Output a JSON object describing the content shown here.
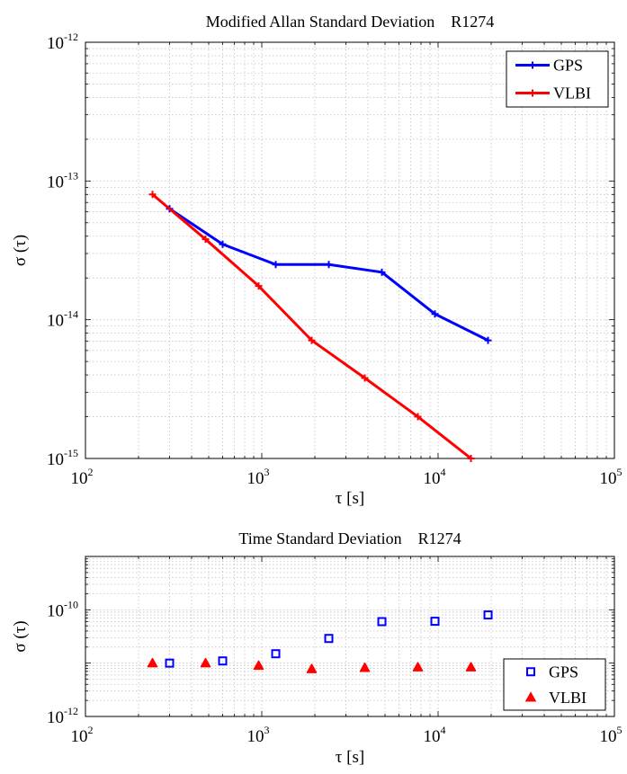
{
  "chart_data": [
    {
      "type": "line",
      "title": "Modified Allan Standard Deviation    R1274",
      "xlabel": "τ [s]",
      "ylabel": "σ (τ)",
      "xscale": "log",
      "yscale": "log",
      "xlim": [
        100,
        100000
      ],
      "ylim": [
        1e-15,
        1e-12
      ],
      "x_ticks": [
        {
          "base": "10",
          "exp": "2"
        },
        {
          "base": "10",
          "exp": "3"
        },
        {
          "base": "10",
          "exp": "4"
        },
        {
          "base": "10",
          "exp": "5"
        }
      ],
      "y_ticks": [
        {
          "base": "10",
          "exp": "-15"
        },
        {
          "base": "10",
          "exp": "-14"
        },
        {
          "base": "10",
          "exp": "-13"
        },
        {
          "base": "10",
          "exp": "-12"
        }
      ],
      "grid": true,
      "legend_position": "top-right",
      "series": [
        {
          "name": "GPS",
          "color": "#0000ff",
          "x": [
            300,
            600,
            1200,
            2400,
            4800,
            9600,
            19200
          ],
          "y": [
            6.3e-14,
            3.5e-14,
            2.5e-14,
            2.5e-14,
            2.2e-14,
            1.1e-14,
            7.1e-15
          ]
        },
        {
          "name": "VLBI",
          "color": "#ff0000",
          "x": [
            240,
            480,
            960,
            1920,
            3840,
            7680,
            15360
          ],
          "y": [
            8e-14,
            3.8e-14,
            1.75e-14,
            7.1e-15,
            3.8e-15,
            2e-15,
            1e-15
          ]
        }
      ]
    },
    {
      "type": "scatter",
      "title": "Time Standard Deviation    R1274",
      "xlabel": "τ [s]",
      "ylabel": "σ (τ)",
      "xscale": "log",
      "yscale": "log",
      "xlim": [
        100,
        100000
      ],
      "ylim": [
        1e-12,
        1e-09
      ],
      "x_ticks": [
        {
          "base": "10",
          "exp": "2"
        },
        {
          "base": "10",
          "exp": "3"
        },
        {
          "base": "10",
          "exp": "4"
        },
        {
          "base": "10",
          "exp": "5"
        }
      ],
      "y_ticks": [
        {
          "base": "10",
          "exp": "-12"
        },
        {
          "base": "10",
          "exp": "-10"
        }
      ],
      "grid": true,
      "legend_position": "bottom-right",
      "series": [
        {
          "name": "GPS",
          "color": "#0000ff",
          "marker": "square",
          "x": [
            300,
            600,
            1200,
            2400,
            4800,
            9600,
            19200
          ],
          "y": [
            1e-11,
            1.1e-11,
            1.5e-11,
            2.9e-11,
            6e-11,
            6.1e-11,
            8e-11
          ]
        },
        {
          "name": "VLBI",
          "color": "#ff0000",
          "marker": "triangle",
          "x": [
            240,
            480,
            960,
            1920,
            3840,
            7680,
            15360
          ],
          "y": [
            1e-11,
            1e-11,
            9e-12,
            7.8e-12,
            8.2e-12,
            8.4e-12,
            8.4e-12
          ]
        }
      ]
    }
  ]
}
